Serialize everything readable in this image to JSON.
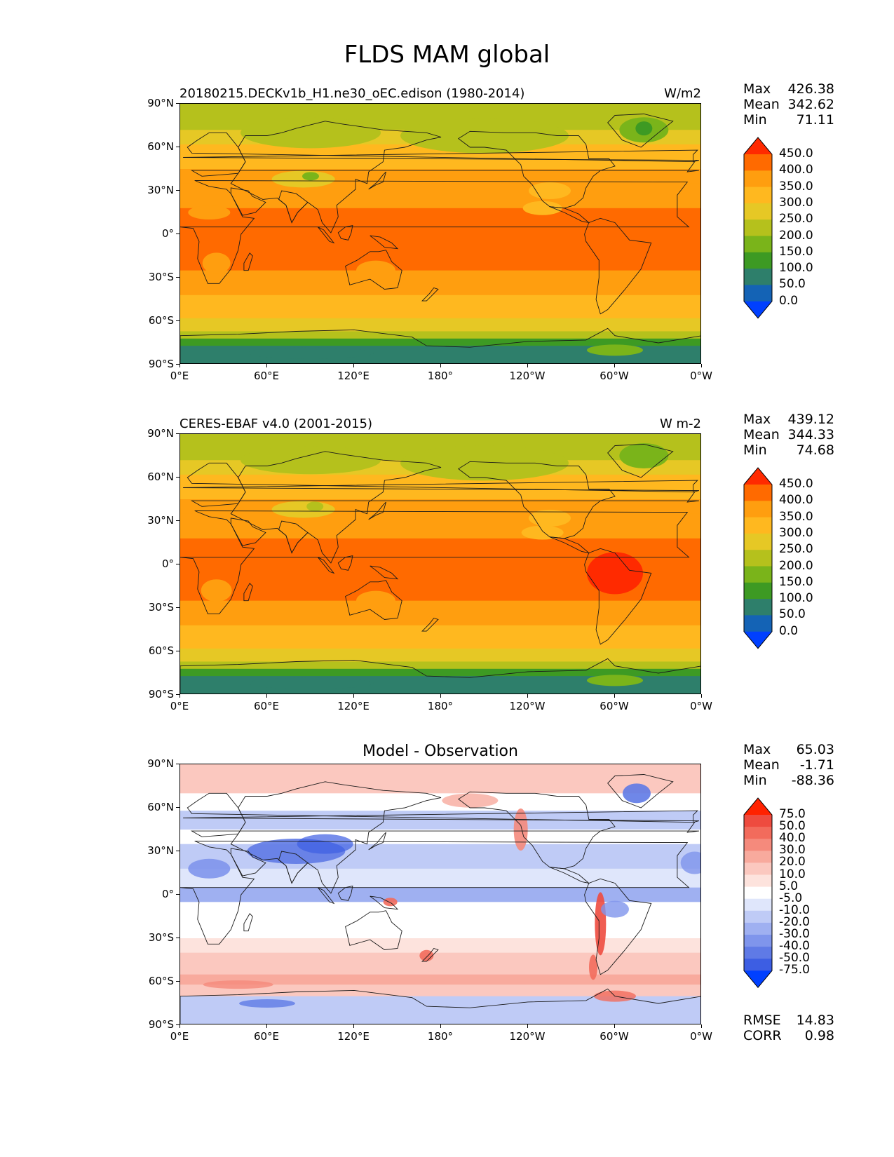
{
  "figure": {
    "title": "FLDS MAM global"
  },
  "axes": {
    "lat_labels": [
      "90°N",
      "60°N",
      "30°N",
      "0°",
      "30°S",
      "60°S",
      "90°S"
    ],
    "lon_labels": [
      "0°E",
      "60°E",
      "120°E",
      "180°",
      "120°W",
      "60°W",
      "0°W"
    ]
  },
  "panels": [
    {
      "title": "20180215.DECKv1b_H1.ne30_oEC.edison (1980-2014)",
      "units": "W/m2",
      "stats": {
        "max_label": "Max",
        "max": "426.38",
        "mean_label": "Mean",
        "mean": "342.62",
        "min_label": "Min",
        "min": "71.11"
      },
      "colorbar": {
        "levels": [
          "450.0",
          "400.0",
          "350.0",
          "300.0",
          "250.0",
          "200.0",
          "150.0",
          "100.0",
          "50.0",
          "0.0"
        ],
        "colors": [
          "#ff2a00",
          "#ff6a00",
          "#ff9e0f",
          "#ffb81f",
          "#e6c825",
          "#b5c11c",
          "#7ab41a",
          "#3d9a23",
          "#2e7f6b",
          "#1463b5",
          "#0040ff"
        ]
      }
    },
    {
      "title": "CERES-EBAF v4.0 (2001-2015)",
      "units": "W m-2",
      "stats": {
        "max_label": "Max",
        "max": "439.12",
        "mean_label": "Mean",
        "mean": "344.33",
        "min_label": "Min",
        "min": "74.68"
      },
      "colorbar": {
        "levels": [
          "450.0",
          "400.0",
          "350.0",
          "300.0",
          "250.0",
          "200.0",
          "150.0",
          "100.0",
          "50.0",
          "0.0"
        ],
        "colors": [
          "#ff2a00",
          "#ff6a00",
          "#ff9e0f",
          "#ffb81f",
          "#e6c825",
          "#b5c11c",
          "#7ab41a",
          "#3d9a23",
          "#2e7f6b",
          "#1463b5",
          "#0040ff"
        ]
      }
    },
    {
      "title": "Model - Observation",
      "units": "",
      "stats": {
        "max_label": "Max",
        "max": "65.03",
        "mean_label": "Mean",
        "mean": "-1.71",
        "min_label": "Min",
        "min": "-88.36"
      },
      "colorbar": {
        "levels": [
          "75.0",
          "50.0",
          "40.0",
          "30.0",
          "20.0",
          "10.0",
          "5.0",
          "-5.0",
          "-10.0",
          "-20.0",
          "-30.0",
          "-40.0",
          "-50.0",
          "-75.0"
        ],
        "colors": [
          "#ff2200",
          "#ee4b3f",
          "#f26b5c",
          "#f58a7c",
          "#f8aa9d",
          "#fbc8bf",
          "#fde3dd",
          "#ffffff",
          "#dfe6fb",
          "#bfcbf6",
          "#9fb0f1",
          "#7f95ec",
          "#5f7ae6",
          "#3d5ee3",
          "#0040ff"
        ]
      },
      "metrics": {
        "rmse_label": "RMSE",
        "rmse": "14.83",
        "corr_label": "CORR",
        "corr": "0.98"
      }
    }
  ]
}
